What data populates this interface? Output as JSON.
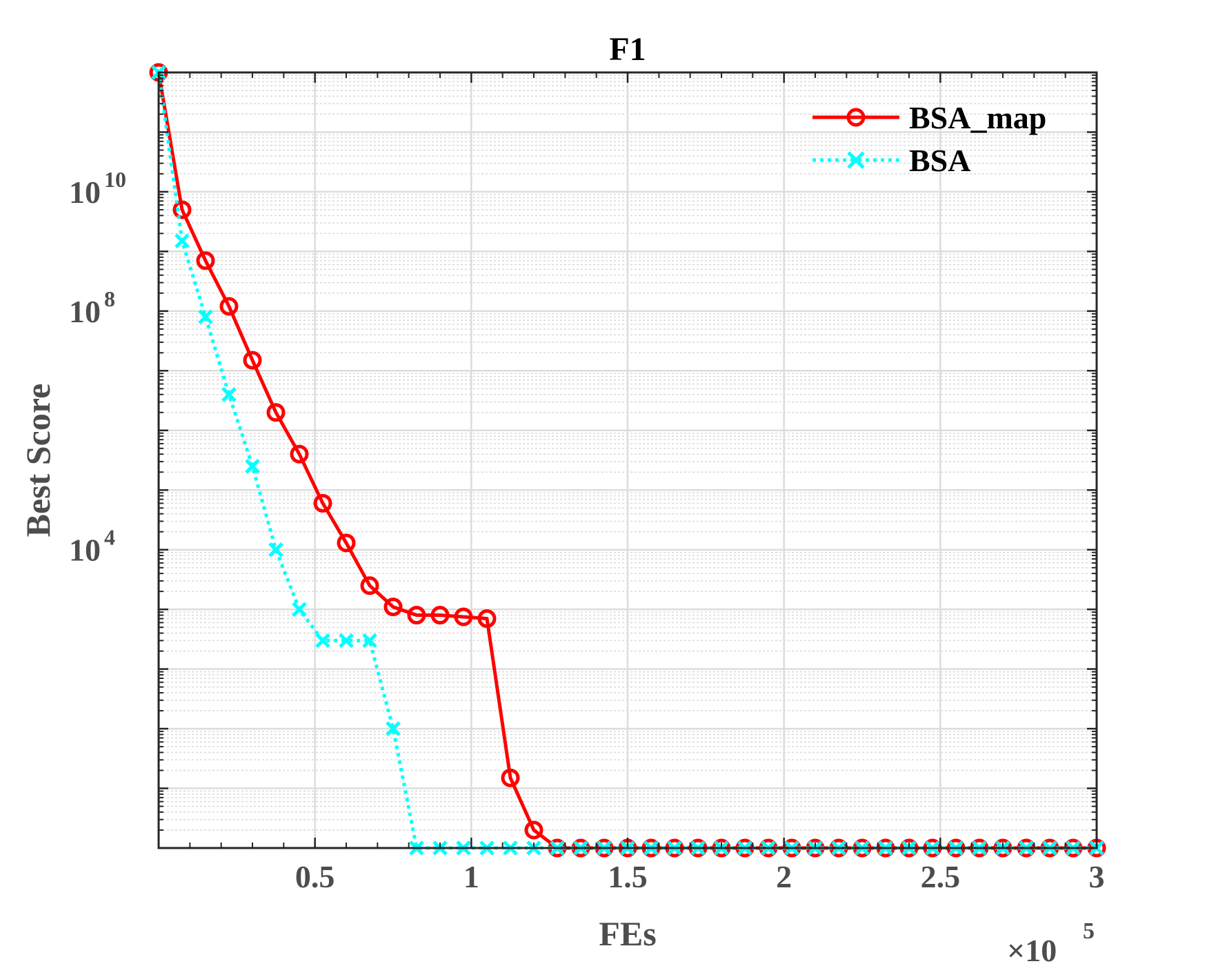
{
  "chart_data": {
    "type": "line",
    "title": "F1",
    "xlabel": "FEs",
    "ylabel": "Best Score",
    "x_exponent_label": "×10",
    "x_exponent_power": "5",
    "x_scale_factor": 100000,
    "y_scale": "log",
    "xlim": [
      0,
      300000
    ],
    "ylim": [
      0.1,
      1000000000000.0
    ],
    "grid": true,
    "minor_grid": true,
    "legend_position": "top-right",
    "x_ticks": [
      50000,
      100000,
      150000,
      200000,
      250000,
      300000
    ],
    "x_tick_labels": [
      "0.5",
      "1",
      "1.5",
      "2",
      "2.5",
      "3"
    ],
    "y_ticks": [
      10000,
      100000000,
      10000000000
    ],
    "y_tick_base": "10",
    "y_tick_exponents": [
      "4",
      "8",
      "10"
    ],
    "x": [
      0,
      7500,
      15000,
      22500,
      30000,
      37500,
      45000,
      52500,
      60000,
      67500,
      75000,
      82500,
      90000,
      97500,
      105000,
      112500,
      120000,
      127500,
      135000,
      142500,
      150000,
      157500,
      165000,
      172500,
      180000,
      187500,
      195000,
      202500,
      210000,
      217500,
      225000,
      232500,
      240000,
      247500,
      255000,
      262500,
      270000,
      277500,
      285000,
      292500,
      300000
    ],
    "series": [
      {
        "name": "BSA_map",
        "color": "#ff0000",
        "line_style": "solid",
        "marker": "circle",
        "values": [
          1000000000000.0,
          5000000000.0,
          700000000.0,
          120000000.0,
          15000000.0,
          2000000.0,
          400000.0,
          60000.0,
          13000.0,
          2500.0,
          1100.0,
          800,
          800,
          750,
          700,
          1.5,
          0.2,
          0.1,
          0.1,
          0.1,
          0.1,
          0.1,
          0.1,
          0.1,
          0.1,
          0.1,
          0.1,
          0.1,
          0.1,
          0.1,
          0.1,
          0.1,
          0.1,
          0.1,
          0.1,
          0.1,
          0.1,
          0.1,
          0.1,
          0.1,
          0.1
        ]
      },
      {
        "name": "BSA",
        "color": "#00ffff",
        "line_style": "dotted",
        "marker": "x",
        "values": [
          1000000000000.0,
          1500000000.0,
          80000000.0,
          4000000.0,
          250000.0,
          10000.0,
          1000.0,
          300,
          300,
          300,
          10,
          0.1,
          0.1,
          0.1,
          0.1,
          0.1,
          0.1,
          0.1,
          0.1,
          0.1,
          0.1,
          0.1,
          0.1,
          0.1,
          0.1,
          0.1,
          0.1,
          0.1,
          0.1,
          0.1,
          0.1,
          0.1,
          0.1,
          0.1,
          0.1,
          0.1,
          0.1,
          0.1,
          0.1,
          0.1,
          0.1
        ]
      }
    ]
  }
}
